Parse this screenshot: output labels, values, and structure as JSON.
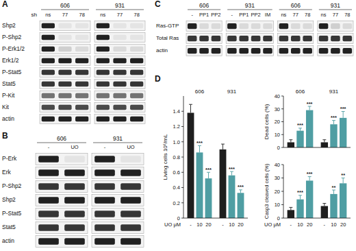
{
  "blots": [
    {
      "panel": "A",
      "lane_label": "sh",
      "groups": [
        {
          "label": "606",
          "lanes": [
            "ns",
            "77",
            "78"
          ]
        },
        {
          "label": "931",
          "lanes": [
            "ns",
            "77",
            "78"
          ]
        }
      ],
      "rows": [
        {
          "label": "Shp2",
          "bands": [
            [
              1,
              0.05,
              0.05
            ],
            [
              1,
              0.05,
              0.05
            ]
          ]
        },
        {
          "label": "P-Shp2",
          "bands": [
            [
              1,
              0.05,
              0.05
            ],
            [
              1,
              0.05,
              0.05
            ]
          ]
        },
        {
          "label": "P-Erk1/2",
          "bands": [
            [
              1,
              0.15,
              0.1
            ],
            [
              1,
              0.1,
              0.1
            ]
          ]
        },
        {
          "label": "Erk1/2",
          "bands": [
            [
              1,
              1,
              1
            ],
            [
              1,
              1,
              1
            ]
          ]
        },
        {
          "label": "P-Stat5",
          "bands": [
            [
              0.9,
              0.9,
              0.9
            ],
            [
              0.9,
              0.9,
              0.9
            ]
          ]
        },
        {
          "label": "Stat5",
          "bands": [
            [
              0.9,
              0.9,
              0.9
            ],
            [
              0.9,
              0.9,
              0.9
            ]
          ]
        },
        {
          "label": "P-Kit",
          "bands": [
            [
              0.6,
              0.6,
              0.6
            ],
            [
              0.6,
              0.6,
              0.6
            ]
          ]
        },
        {
          "label": "Kit",
          "bands": [
            [
              0.8,
              0.8,
              0.8
            ],
            [
              0.8,
              0.8,
              0.8
            ]
          ]
        },
        {
          "label": "actin",
          "bands": [
            [
              1,
              1,
              1
            ],
            [
              1,
              1,
              1
            ]
          ]
        }
      ]
    },
    {
      "panel": "B",
      "groups": [
        {
          "label": "606",
          "lanes": [
            "-",
            "UO"
          ]
        },
        {
          "label": "931",
          "lanes": [
            "-",
            "UO"
          ]
        }
      ],
      "rows": [
        {
          "label": "P-Erk",
          "bands": [
            [
              1,
              0.05
            ],
            [
              1,
              0.05
            ]
          ]
        },
        {
          "label": "Erk",
          "bands": [
            [
              1,
              1
            ],
            [
              1,
              1
            ]
          ]
        },
        {
          "label": "P-Shp2",
          "bands": [
            [
              0.9,
              0.9
            ],
            [
              0.9,
              0.9
            ]
          ]
        },
        {
          "label": "Shp2",
          "bands": [
            [
              1,
              1
            ],
            [
              1,
              1
            ]
          ]
        },
        {
          "label": "P-Stat5",
          "bands": [
            [
              0.9,
              0.9
            ],
            [
              0.9,
              0.9
            ]
          ]
        },
        {
          "label": "Stat5",
          "bands": [
            [
              0.9,
              0.9
            ],
            [
              0.9,
              0.9
            ]
          ]
        },
        {
          "label": "actin",
          "bands": [
            [
              1,
              1
            ],
            [
              1,
              1
            ]
          ]
        }
      ]
    },
    {
      "panel": "C",
      "groups": [
        {
          "label": "606",
          "lanes": [
            "-",
            "PP1",
            "PP2"
          ]
        },
        {
          "label": "931",
          "lanes": [
            "-",
            "PP1",
            "PP2",
            "IM"
          ]
        },
        {
          "label": "606",
          "lanes": [
            "ns",
            "77",
            "78"
          ]
        },
        {
          "label": "931",
          "lanes": [
            "ns",
            "77",
            "78"
          ]
        }
      ],
      "rows": [
        {
          "label": "Ras-GTP",
          "bands": [
            [
              1,
              0.1,
              0.1
            ],
            [
              1,
              0.1,
              0.1,
              0.1
            ],
            [
              1,
              0.1,
              0.1
            ],
            [
              1,
              0.15,
              0.1
            ]
          ]
        },
        {
          "label": "Total Ras",
          "bands": [
            [
              0.9,
              0.9,
              0.9
            ],
            [
              0.9,
              0.9,
              0.9,
              0.9
            ],
            [
              0.9,
              0.9,
              0.9
            ],
            [
              0.9,
              0.9,
              0.9
            ]
          ]
        },
        {
          "label": "actin",
          "bands": [
            [
              1,
              1,
              1
            ],
            [
              1,
              1,
              1,
              1
            ],
            [
              1,
              1,
              1
            ],
            [
              1,
              1,
              1
            ]
          ]
        }
      ]
    }
  ],
  "panel_d": {
    "label": "D"
  },
  "chart_data": [
    {
      "type": "bar",
      "ylabel": "Living cells 10⁶/mL",
      "xlabel": "UO μM",
      "groups": [
        "606",
        "931"
      ],
      "categories": [
        "-",
        "10",
        "20",
        "-",
        "10",
        "20"
      ],
      "values": [
        1.38,
        0.86,
        0.52,
        0.9,
        0.56,
        0.33
      ],
      "errors": [
        0.11,
        0.09,
        0.08,
        0.07,
        0.05,
        0.04
      ],
      "annotations": [
        null,
        "***",
        "***",
        null,
        "***",
        "***"
      ],
      "colors": [
        "#1e1e1e",
        "#4f9ea3",
        "#4f9ea3",
        "#1e1e1e",
        "#4f9ea3",
        "#4f9ea3"
      ],
      "ylim": [
        0,
        1.6
      ],
      "yticks": [
        0,
        0.2,
        0.4,
        0.6,
        0.8,
        {
          "value": 1,
          "label": "1.0"
        },
        1.2,
        1.4
      ]
    },
    {
      "type": "bar",
      "ylabel": "Dead cells (%)",
      "groups": [
        "606",
        "931"
      ],
      "categories": [
        null,
        null,
        null,
        null,
        null,
        null
      ],
      "values": [
        4,
        13,
        29,
        4,
        18,
        23
      ],
      "errors": [
        2,
        2,
        3,
        2,
        3,
        5
      ],
      "annotations": [
        null,
        "***",
        "***",
        null,
        "***",
        "***"
      ],
      "colors": [
        "#1e1e1e",
        "#4f9ea3",
        "#4f9ea3",
        "#1e1e1e",
        "#4f9ea3",
        "#4f9ea3"
      ],
      "ylim": [
        0,
        40
      ],
      "yticks": [
        0,
        10,
        20,
        30,
        40
      ]
    },
    {
      "type": "bar",
      "ylabel": "Casp3 cleaved cells (%)",
      "xlabel": "UO μM",
      "categories": [
        "-",
        "10",
        "20",
        "-",
        "10",
        "20"
      ],
      "values": [
        6,
        14,
        28,
        9,
        18,
        26
      ],
      "errors": [
        2,
        3,
        3,
        2,
        3,
        4
      ],
      "annotations": [
        null,
        "***",
        "***",
        null,
        "**",
        "**"
      ],
      "colors": [
        "#1e1e1e",
        "#4f9ea3",
        "#4f9ea3",
        "#1e1e1e",
        "#4f9ea3",
        "#4f9ea3"
      ],
      "ylim": [
        0,
        40
      ],
      "yticks": [
        0,
        10,
        20,
        30,
        40
      ]
    }
  ]
}
